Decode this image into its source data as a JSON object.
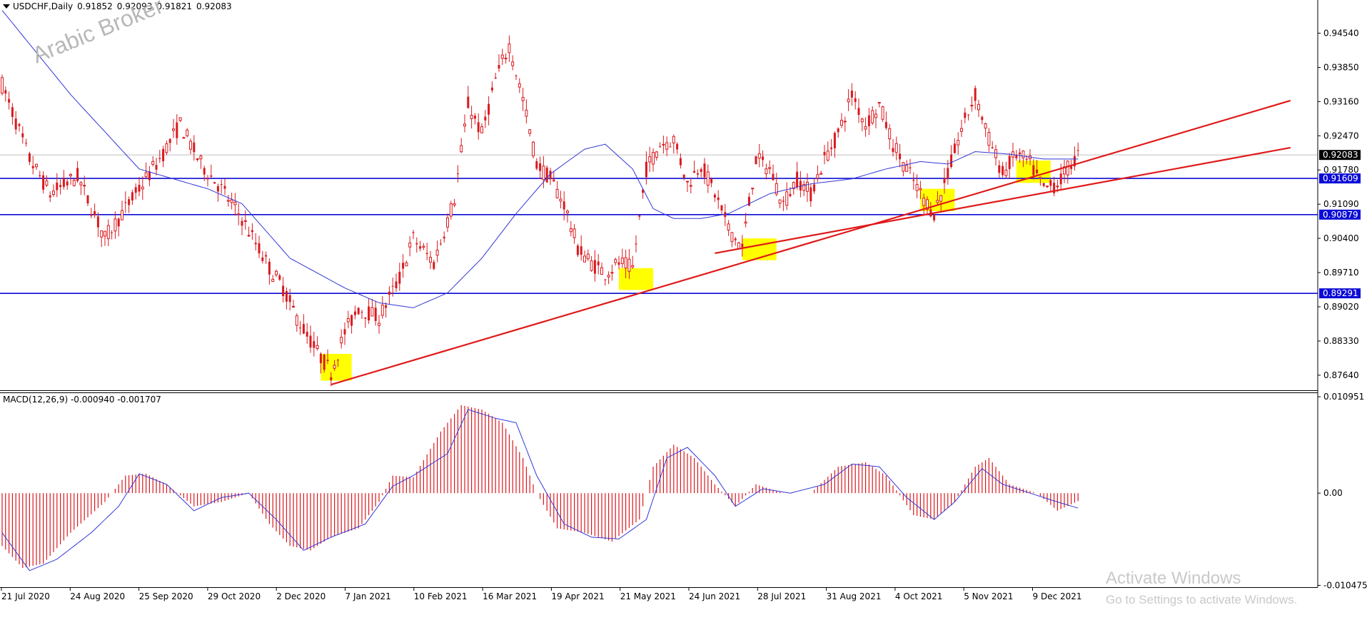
{
  "header": {
    "symbol": "USDCHF,Daily",
    "open": "0.91852",
    "high": "0.92093",
    "low": "0.91821",
    "close": "0.92083"
  },
  "watermark": "Arabic Broker",
  "activate": {
    "line1": "Activate Windows",
    "line2": "Go to Settings to activate Windows."
  },
  "colors": {
    "background": "#ffffff",
    "candle": "#d9191e",
    "ma_line": "#3237d6",
    "hline": "#0b0bd6",
    "trendline": "#e01919",
    "highlight": "#ffff00",
    "price_tag": "#000000",
    "level_tag": "#0b0bd6"
  },
  "chart_data": [
    {
      "type": "candlestick",
      "title": "USDCHF,Daily",
      "ylim": [
        0.8735,
        0.9495
      ],
      "y_ticks": [
        "0.94540",
        "0.93850",
        "0.93160",
        "0.92470",
        "0.91780",
        "0.91090",
        "0.90400",
        "0.89710",
        "0.89020",
        "0.88330",
        "0.87640"
      ],
      "x_ticks": [
        "21 Jul 2020",
        "24 Aug 2020",
        "25 Sep 2020",
        "29 Oct 2020",
        "2 Dec 2020",
        "7 Jan 2021",
        "10 Feb 2021",
        "16 Mar 2021",
        "19 Apr 2021",
        "21 May 2021",
        "24 Jun 2021",
        "28 Jul 2021",
        "31 Aug 2021",
        "4 Oct 2021",
        "5 Nov 2021",
        "9 Dec 2021"
      ],
      "current_price": "0.92083",
      "horizontal_levels": [
        "0.91609",
        "0.90879",
        "0.89291"
      ],
      "price_path": [
        [
          0,
          0.935
        ],
        [
          8,
          0.92
        ],
        [
          14,
          0.913
        ],
        [
          22,
          0.9165
        ],
        [
          30,
          0.904
        ],
        [
          38,
          0.912
        ],
        [
          46,
          0.92
        ],
        [
          52,
          0.927
        ],
        [
          58,
          0.919
        ],
        [
          64,
          0.914
        ],
        [
          70,
          0.908
        ],
        [
          74,
          0.903
        ],
        [
          78,
          0.898
        ],
        [
          82,
          0.894
        ],
        [
          86,
          0.888
        ],
        [
          92,
          0.881
        ],
        [
          96,
          0.877
        ],
        [
          100,
          0.885
        ],
        [
          104,
          0.89
        ],
        [
          110,
          0.888
        ],
        [
          116,
          0.896
        ],
        [
          120,
          0.904
        ],
        [
          126,
          0.899
        ],
        [
          132,
          0.912
        ],
        [
          136,
          0.931
        ],
        [
          140,
          0.925
        ],
        [
          144,
          0.936
        ],
        [
          148,
          0.943
        ],
        [
          152,
          0.932
        ],
        [
          156,
          0.919
        ],
        [
          160,
          0.916
        ],
        [
          164,
          0.911
        ],
        [
          168,
          0.902
        ],
        [
          172,
          0.899
        ],
        [
          176,
          0.897
        ],
        [
          180,
          0.899
        ],
        [
          184,
          0.898
        ],
        [
          188,
          0.918
        ],
        [
          192,
          0.923
        ],
        [
          196,
          0.924
        ],
        [
          200,
          0.915
        ],
        [
          204,
          0.919
        ],
        [
          208,
          0.913
        ],
        [
          212,
          0.906
        ],
        [
          216,
          0.902
        ],
        [
          220,
          0.92
        ],
        [
          224,
          0.918
        ],
        [
          228,
          0.911
        ],
        [
          232,
          0.916
        ],
        [
          236,
          0.913
        ],
        [
          240,
          0.92
        ],
        [
          244,
          0.925
        ],
        [
          248,
          0.933
        ],
        [
          252,
          0.927
        ],
        [
          256,
          0.931
        ],
        [
          260,
          0.923
        ],
        [
          264,
          0.918
        ],
        [
          268,
          0.913
        ],
        [
          272,
          0.909
        ],
        [
          276,
          0.917
        ],
        [
          280,
          0.926
        ],
        [
          284,
          0.933
        ],
        [
          288,
          0.924
        ],
        [
          292,
          0.917
        ],
        [
          296,
          0.921
        ],
        [
          300,
          0.919
        ],
        [
          304,
          0.914
        ],
        [
          308,
          0.915
        ],
        [
          312,
          0.919
        ],
        [
          314,
          0.9208
        ]
      ],
      "ma_line": [
        [
          0,
          0.95
        ],
        [
          20,
          0.933
        ],
        [
          40,
          0.918
        ],
        [
          60,
          0.914
        ],
        [
          70,
          0.911
        ],
        [
          84,
          0.9
        ],
        [
          100,
          0.894
        ],
        [
          110,
          0.891
        ],
        [
          120,
          0.89
        ],
        [
          130,
          0.893
        ],
        [
          140,
          0.9
        ],
        [
          150,
          0.909
        ],
        [
          160,
          0.917
        ],
        [
          170,
          0.922
        ],
        [
          176,
          0.923
        ],
        [
          184,
          0.918
        ],
        [
          190,
          0.91
        ],
        [
          196,
          0.908
        ],
        [
          204,
          0.908
        ],
        [
          212,
          0.909
        ],
        [
          224,
          0.913
        ],
        [
          236,
          0.915
        ],
        [
          248,
          0.916
        ],
        [
          258,
          0.918
        ],
        [
          268,
          0.9195
        ],
        [
          276,
          0.919
        ],
        [
          284,
          0.9215
        ],
        [
          294,
          0.921
        ],
        [
          304,
          0.92
        ],
        [
          314,
          0.92
        ]
      ],
      "trendlines": [
        {
          "from": [
            96,
            0.8745
          ],
          "to": [
            376,
            0.9318
          ]
        },
        {
          "from": [
            208,
            0.901
          ],
          "to": [
            376,
            0.9223
          ]
        }
      ],
      "highlight_zones": [
        {
          "bars": [
            93,
            102
          ],
          "low": 0.8753,
          "high": 0.8807
        },
        {
          "bars": [
            180,
            190
          ],
          "low": 0.8936,
          "high": 0.898
        },
        {
          "bars": [
            216,
            226
          ],
          "low": 0.8996,
          "high": 0.904
        },
        {
          "bars": [
            268,
            278
          ],
          "low": 0.9095,
          "high": 0.914
        },
        {
          "bars": [
            296,
            306
          ],
          "low": 0.9152,
          "high": 0.9197
        }
      ]
    },
    {
      "type": "bar",
      "title": "MACD(12,26,9)",
      "label": "MACD(12,26,9) -0.000940 -0.001707",
      "ylim": [
        -0.0106,
        0.0112
      ],
      "y_ticks": [
        "0.010951",
        "0.00",
        "-0.010475"
      ],
      "histogram_path": [
        [
          0,
          -0.006
        ],
        [
          6,
          -0.0085
        ],
        [
          12,
          -0.008
        ],
        [
          20,
          -0.0045
        ],
        [
          30,
          -0.001
        ],
        [
          36,
          0.002
        ],
        [
          42,
          0.0022
        ],
        [
          48,
          0.001
        ],
        [
          56,
          -0.0015
        ],
        [
          64,
          -0.001
        ],
        [
          72,
          0.0
        ],
        [
          78,
          -0.0035
        ],
        [
          84,
          -0.006
        ],
        [
          90,
          -0.0065
        ],
        [
          96,
          -0.005
        ],
        [
          104,
          -0.004
        ],
        [
          110,
          -0.001
        ],
        [
          114,
          0.002
        ],
        [
          120,
          0.0018
        ],
        [
          128,
          0.007
        ],
        [
          134,
          0.01
        ],
        [
          140,
          0.0095
        ],
        [
          146,
          0.008
        ],
        [
          152,
          0.004
        ],
        [
          156,
          0.0
        ],
        [
          162,
          -0.004
        ],
        [
          170,
          -0.0045
        ],
        [
          178,
          -0.0055
        ],
        [
          186,
          -0.003
        ],
        [
          190,
          0.003
        ],
        [
          196,
          0.0055
        ],
        [
          202,
          0.004
        ],
        [
          208,
          0.001
        ],
        [
          214,
          -0.0015
        ],
        [
          220,
          0.001
        ],
        [
          228,
          0.0
        ],
        [
          236,
          0.0
        ],
        [
          244,
          0.003
        ],
        [
          252,
          0.0035
        ],
        [
          258,
          0.002
        ],
        [
          266,
          -0.0025
        ],
        [
          272,
          -0.003
        ],
        [
          278,
          -0.001
        ],
        [
          284,
          0.003
        ],
        [
          288,
          0.004
        ],
        [
          294,
          0.001
        ],
        [
          302,
          0.0
        ],
        [
          308,
          -0.002
        ],
        [
          314,
          -0.0009
        ]
      ],
      "signal_path": [
        [
          0,
          -0.0045
        ],
        [
          8,
          -0.0088
        ],
        [
          16,
          -0.0075
        ],
        [
          26,
          -0.0045
        ],
        [
          34,
          -0.0015
        ],
        [
          40,
          0.0022
        ],
        [
          48,
          0.001
        ],
        [
          56,
          -0.002
        ],
        [
          64,
          -0.0005
        ],
        [
          72,
          0.0
        ],
        [
          80,
          -0.003
        ],
        [
          88,
          -0.0065
        ],
        [
          96,
          -0.005
        ],
        [
          106,
          -0.0035
        ],
        [
          114,
          0.0008
        ],
        [
          120,
          0.002
        ],
        [
          130,
          0.0045
        ],
        [
          136,
          0.0095
        ],
        [
          144,
          0.0085
        ],
        [
          150,
          0.008
        ],
        [
          156,
          0.002
        ],
        [
          164,
          -0.0035
        ],
        [
          172,
          -0.005
        ],
        [
          180,
          -0.0052
        ],
        [
          188,
          -0.003
        ],
        [
          194,
          0.004
        ],
        [
          200,
          0.0052
        ],
        [
          208,
          0.002
        ],
        [
          214,
          -0.0015
        ],
        [
          222,
          0.0005
        ],
        [
          230,
          0.0
        ],
        [
          240,
          0.001
        ],
        [
          248,
          0.0033
        ],
        [
          256,
          0.003
        ],
        [
          264,
          -0.0005
        ],
        [
          272,
          -0.003
        ],
        [
          278,
          -0.001
        ],
        [
          286,
          0.0028
        ],
        [
          292,
          0.001
        ],
        [
          300,
          0.0
        ],
        [
          308,
          -0.001
        ],
        [
          314,
          -0.0017
        ]
      ]
    }
  ]
}
